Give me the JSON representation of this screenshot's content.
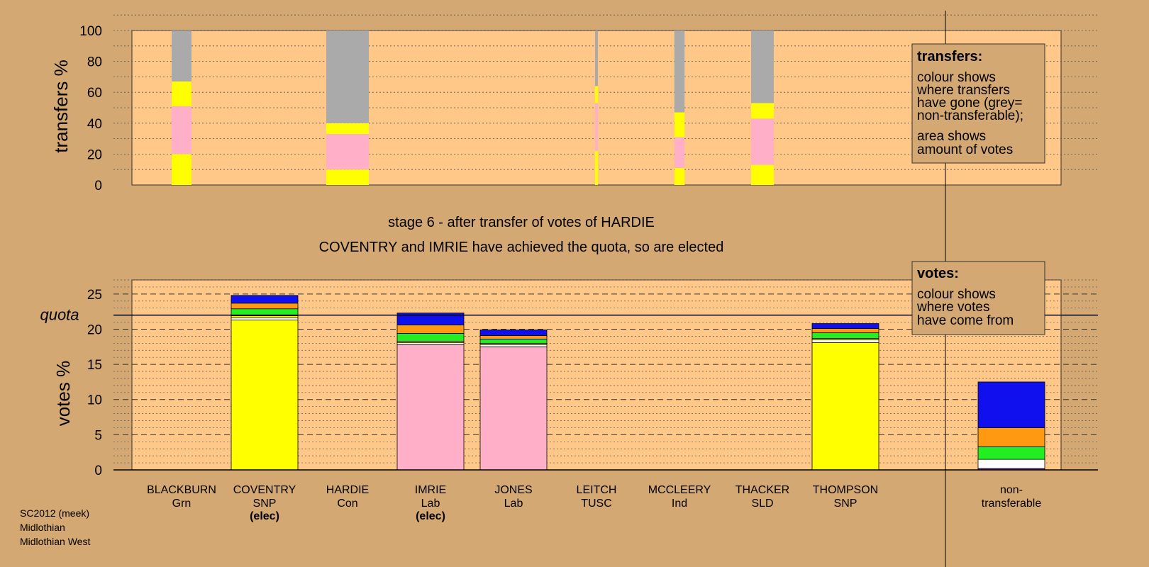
{
  "chart_data": [
    {
      "type": "bar",
      "stacked": true,
      "ylabel": "transfers %",
      "ylim": [
        0,
        100
      ],
      "yticks": [
        0,
        20,
        40,
        60,
        80,
        100
      ],
      "categories": [
        "HARDIE_SLOT_BLACKBURN",
        "COVENTRY",
        "IMRIE",
        "JONES",
        "LEITCH",
        "MCCLEERY",
        "THACKER",
        "THOMPSON"
      ],
      "columns": [
        {
          "candidate": "BLACKBURN",
          "width_share": 0.35,
          "segments": [
            {
              "color": "#FFFF00",
              "value": 20
            },
            {
              "color": "#FFB0C8",
              "value": 31
            },
            {
              "color": "#FFFF00",
              "value": 16
            },
            {
              "color": "#AAAAAA",
              "value": 33
            }
          ]
        },
        {
          "candidate": "HARDIE",
          "width_share": 0.75,
          "segments": [
            {
              "color": "#FFFF00",
              "value": 10
            },
            {
              "color": "#FFB0C8",
              "value": 23
            },
            {
              "color": "#FFFF00",
              "value": 7
            },
            {
              "color": "#AAAAAA",
              "value": 60
            }
          ]
        },
        {
          "candidate": "LEITCH",
          "width_share": 0.05,
          "segments": [
            {
              "color": "#FFFF00",
              "value": 22
            },
            {
              "color": "#FFB0C8",
              "value": 31
            },
            {
              "color": "#FFFF00",
              "value": 11
            },
            {
              "color": "#AAAAAA",
              "value": 36
            }
          ]
        },
        {
          "candidate": "MCCLEERY",
          "width_share": 0.18,
          "segments": [
            {
              "color": "#FFFF00",
              "value": 11
            },
            {
              "color": "#FFB0C8",
              "value": 20
            },
            {
              "color": "#FFFF00",
              "value": 16
            },
            {
              "color": "#AAAAAA",
              "value": 53
            }
          ]
        },
        {
          "candidate": "THACKER",
          "width_share": 0.4,
          "segments": [
            {
              "color": "#FFFF00",
              "value": 13
            },
            {
              "color": "#FFB0C8",
              "value": 30
            },
            {
              "color": "#FFFF00",
              "value": 10
            },
            {
              "color": "#AAAAAA",
              "value": 47
            }
          ]
        }
      ],
      "legend": {
        "heading": "transfers:",
        "lines1": [
          "colour shows",
          "where transfers",
          "have gone (grey=",
          "non-transferable);"
        ],
        "lines2": [
          "area shows",
          "amount of votes"
        ]
      }
    },
    {
      "type": "bar",
      "stacked": true,
      "ylabel": "votes %",
      "ylim": [
        0,
        27
      ],
      "yticks": [
        0,
        5,
        10,
        15,
        20,
        25
      ],
      "quota": 22,
      "quota_label": "quota",
      "categories": [
        "BLACKBURN",
        "COVENTRY",
        "HARDIE",
        "IMRIE",
        "JONES",
        "LEITCH",
        "MCCLEERY",
        "THACKER",
        "THOMPSON",
        "non-transferable"
      ],
      "series_colors": {
        "SNP": "#FFFF00",
        "Lab": "#FFB0C8",
        "white": "#FFFFFF",
        "green": "#22EE22",
        "orange": "#FF9911",
        "blue": "#1010EE",
        "purple": "#7A1FA2"
      },
      "stacks": [
        {
          "candidate": "COVENTRY",
          "segments": [
            {
              "color": "#FFFF00",
              "value": 21.3
            },
            {
              "color": "#FFFFFF",
              "value": 0.3
            },
            {
              "color": "#FFFF00",
              "value": 0.3
            },
            {
              "color": "#22EE22",
              "value": 1.0
            },
            {
              "color": "#FF9911",
              "value": 0.8
            },
            {
              "color": "#1010EE",
              "value": 1.1
            }
          ]
        },
        {
          "candidate": "IMRIE",
          "segments": [
            {
              "color": "#FFB0C8",
              "value": 17.8
            },
            {
              "color": "#FFFFFF",
              "value": 0.3
            },
            {
              "color": "#FFFF00",
              "value": 0.2
            },
            {
              "color": "#22EE22",
              "value": 1.1
            },
            {
              "color": "#FF9911",
              "value": 1.2
            },
            {
              "color": "#1010EE",
              "value": 1.7
            }
          ]
        },
        {
          "candidate": "JONES",
          "segments": [
            {
              "color": "#FFB0C8",
              "value": 17.5
            },
            {
              "color": "#FFFFFF",
              "value": 0.3
            },
            {
              "color": "#FFFF00",
              "value": 0.2
            },
            {
              "color": "#22EE22",
              "value": 0.6
            },
            {
              "color": "#FF9911",
              "value": 0.5
            },
            {
              "color": "#1010EE",
              "value": 0.8
            }
          ]
        },
        {
          "candidate": "THOMPSON",
          "segments": [
            {
              "color": "#FFFF00",
              "value": 18.1
            },
            {
              "color": "#FFFFFF",
              "value": 0.4
            },
            {
              "color": "#FFFF00",
              "value": 0.2
            },
            {
              "color": "#22EE22",
              "value": 0.8
            },
            {
              "color": "#FF9911",
              "value": 0.6
            },
            {
              "color": "#1010EE",
              "value": 0.7
            }
          ]
        },
        {
          "candidate": "non-transferable",
          "segments": [
            {
              "color": "#7A1FA2",
              "value": 0.2
            },
            {
              "color": "#FFFFFF",
              "value": 1.3
            },
            {
              "color": "#22EE22",
              "value": 1.8
            },
            {
              "color": "#FF9911",
              "value": 2.7
            },
            {
              "color": "#1010EE",
              "value": 6.5
            }
          ]
        }
      ],
      "legend": {
        "heading": "votes:",
        "lines": [
          "colour shows",
          "where votes",
          "have come from"
        ]
      }
    }
  ],
  "candidates": [
    {
      "name": "BLACKBURN",
      "party": "Grn",
      "note": ""
    },
    {
      "name": "COVENTRY",
      "party": "SNP",
      "note": "(elec)"
    },
    {
      "name": "HARDIE",
      "party": "Con",
      "note": ""
    },
    {
      "name": "IMRIE",
      "party": "Lab",
      "note": "(elec)"
    },
    {
      "name": "JONES",
      "party": "Lab",
      "note": ""
    },
    {
      "name": "LEITCH",
      "party": "TUSC",
      "note": ""
    },
    {
      "name": "MCCLEERY",
      "party": "Ind",
      "note": ""
    },
    {
      "name": "THACKER",
      "party": "SLD",
      "note": ""
    },
    {
      "name": "THOMPSON",
      "party": "SNP",
      "note": ""
    },
    {
      "name": "non-",
      "party": "transferable",
      "note": ""
    }
  ],
  "stage_title": "stage 6 - after transfer of votes of HARDIE",
  "stage_subtitle": "COVENTRY and IMRIE have achieved the quota, so are elected",
  "footer": [
    "SC2012 (meek)",
    "Midlothian",
    "Midlothian West"
  ],
  "colors": {
    "page_bg": "#D4A873",
    "plot_bg": "#FFC888"
  }
}
